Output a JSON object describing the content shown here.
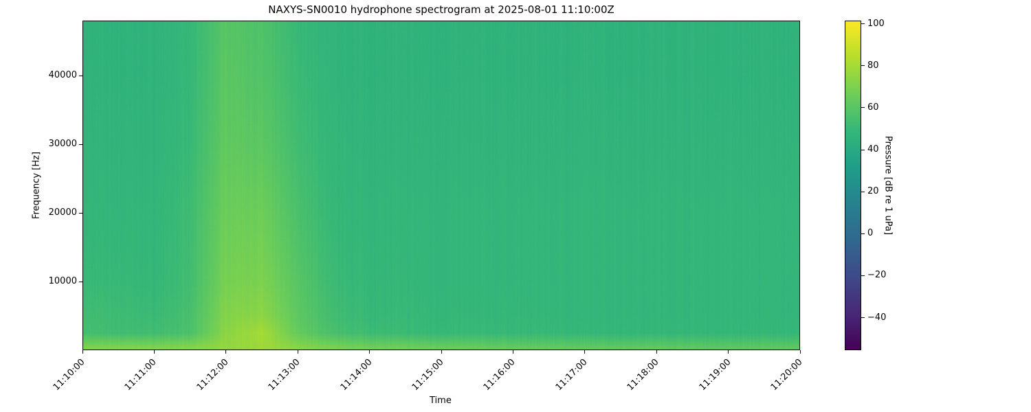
{
  "chart_data": {
    "type": "heatmap",
    "title": "NAXYS-SN0010 hydrophone spectrogram at 2025-08-01 11:10:00Z",
    "xlabel": "Time",
    "ylabel": "Frequency [Hz]",
    "colorbar_label": "Pressure [dB re 1 uPa]",
    "colormap": "viridis",
    "xlim": [
      "11:10:00",
      "11:20:00"
    ],
    "ylim": [
      0,
      48000
    ],
    "clim": [
      -55.5,
      101.5
    ],
    "x_ticks": [
      "11:10:00",
      "11:11:00",
      "11:12:00",
      "11:13:00",
      "11:14:00",
      "11:15:00",
      "11:16:00",
      "11:17:00",
      "11:18:00",
      "11:19:00",
      "11:20:00"
    ],
    "y_ticks": [
      10000,
      20000,
      30000,
      40000
    ],
    "colorbar_ticks": [
      -40,
      -20,
      0,
      20,
      40,
      60,
      80,
      100
    ],
    "grid": false,
    "x": [
      "11:10:00",
      "11:10:30",
      "11:11:00",
      "11:11:30",
      "11:12:00",
      "11:12:30",
      "11:13:00",
      "11:13:30",
      "11:14:00",
      "11:14:30",
      "11:15:00",
      "11:15:30",
      "11:16:00",
      "11:16:30",
      "11:17:00",
      "11:17:30",
      "11:18:00",
      "11:18:30",
      "11:19:00",
      "11:19:30",
      "11:20:00"
    ],
    "y": [
      250,
      2500,
      5000,
      10000,
      20000,
      30000,
      40000,
      48000
    ],
    "z": [
      [
        72,
        72,
        72,
        73,
        76,
        78,
        74,
        70,
        68,
        67,
        66,
        65,
        64,
        64,
        63,
        63,
        63,
        62,
        62,
        62,
        62
      ],
      [
        54,
        53,
        53,
        56,
        74,
        80,
        64,
        55,
        52,
        51,
        50,
        50,
        50,
        50,
        49,
        49,
        49,
        49,
        49,
        49,
        49
      ],
      [
        53,
        52,
        51,
        55,
        72,
        74,
        62,
        53,
        50,
        50,
        49,
        49,
        49,
        49,
        48,
        48,
        48,
        48,
        48,
        48,
        48
      ],
      [
        50,
        50,
        49,
        53,
        69,
        70,
        60,
        51,
        49,
        49,
        48,
        48,
        48,
        48,
        48,
        48,
        48,
        48,
        48,
        48,
        48
      ],
      [
        48,
        48,
        48,
        52,
        66,
        66,
        56,
        49,
        48,
        48,
        48,
        48,
        48,
        48,
        48,
        48,
        48,
        48,
        48,
        48,
        48
      ],
      [
        47,
        47,
        47,
        50,
        63,
        61,
        53,
        48,
        47,
        47,
        47,
        47,
        47,
        47,
        47,
        47,
        47,
        47,
        47,
        47,
        47
      ],
      [
        46,
        46,
        46,
        49,
        61,
        58,
        51,
        47,
        46,
        46,
        46,
        46,
        46,
        46,
        46,
        46,
        46,
        46,
        46,
        46,
        46
      ],
      [
        46,
        46,
        46,
        49,
        60,
        57,
        50,
        47,
        46,
        46,
        46,
        46,
        46,
        46,
        46,
        46,
        46,
        46,
        46,
        46,
        46
      ]
    ]
  }
}
